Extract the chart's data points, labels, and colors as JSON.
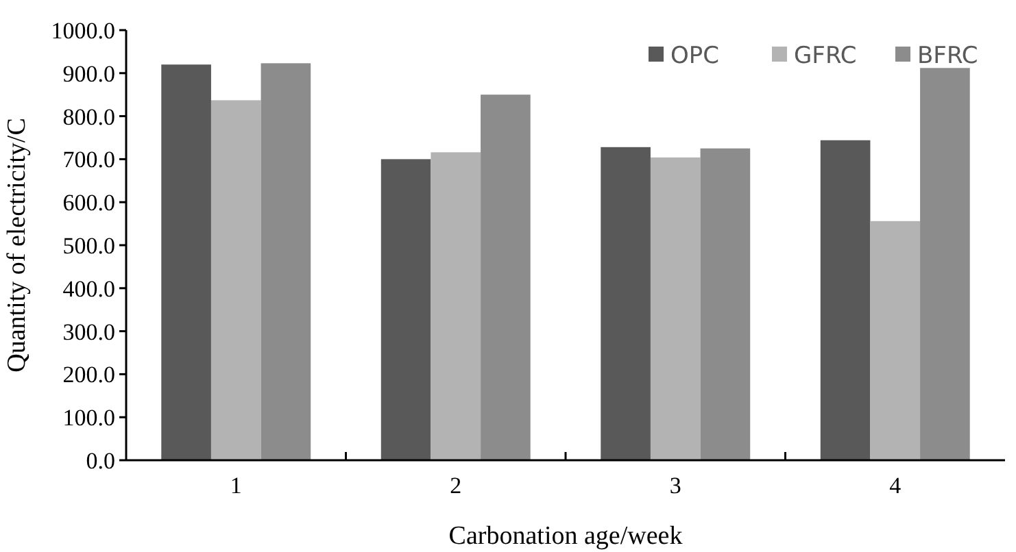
{
  "chart_data": {
    "type": "bar",
    "xlabel": "Carbonation age/week",
    "ylabel": "Quantity of electricity/C",
    "categories": [
      "1",
      "2",
      "3",
      "4"
    ],
    "series": [
      {
        "name": "OPC",
        "color": "#595959",
        "values": [
          920,
          700,
          728,
          744
        ]
      },
      {
        "name": "GFRC",
        "color": "#b3b3b3",
        "values": [
          837,
          716,
          704,
          556
        ]
      },
      {
        "name": "BFRC",
        "color": "#8c8c8c",
        "values": [
          923,
          850,
          725,
          912
        ]
      }
    ],
    "ylim": [
      0,
      1000
    ],
    "yticks": [
      {
        "value": 0,
        "label": "0.0"
      },
      {
        "value": 100,
        "label": "100.0"
      },
      {
        "value": 200,
        "label": "200.0"
      },
      {
        "value": 300,
        "label": "300.0"
      },
      {
        "value": 400,
        "label": "400.0"
      },
      {
        "value": 500,
        "label": "500.0"
      },
      {
        "value": 600,
        "label": "600.0"
      },
      {
        "value": 700,
        "label": "700.0"
      },
      {
        "value": 800,
        "label": "800.0"
      },
      {
        "value": 900,
        "label": "900.0"
      },
      {
        "value": 1000,
        "label": "1000.0"
      }
    ],
    "grid": false,
    "legend": "top right"
  }
}
